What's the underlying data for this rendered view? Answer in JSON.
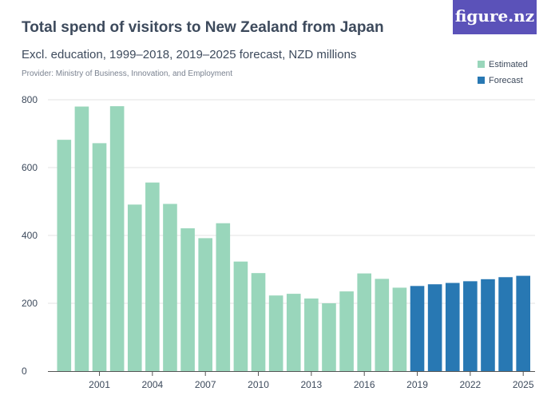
{
  "header": {
    "title": "Total spend of visitors to New Zealand from Japan",
    "subtitle": "Excl. education, 1999–2018, 2019–2025 forecast, NZD millions",
    "provider": "Provider: Ministry of Business, Innovation, and Employment",
    "logo": "figure.nz"
  },
  "chart_data": {
    "type": "bar",
    "title": "Total spend of visitors to New Zealand from Japan",
    "subtitle": "Excl. education, 1999–2018, 2019–2025 forecast, NZD millions",
    "categories": [
      1999,
      2000,
      2001,
      2002,
      2003,
      2004,
      2005,
      2006,
      2007,
      2008,
      2009,
      2010,
      2011,
      2012,
      2013,
      2014,
      2015,
      2016,
      2017,
      2018,
      2019,
      2020,
      2021,
      2022,
      2023,
      2024,
      2025
    ],
    "values": [
      682,
      780,
      672,
      781,
      491,
      556,
      493,
      421,
      392,
      436,
      323,
      289,
      223,
      228,
      214,
      200,
      235,
      288,
      272,
      246,
      251,
      256,
      260,
      265,
      271,
      277,
      281
    ],
    "series_by_category": [
      "Estimated",
      "Estimated",
      "Estimated",
      "Estimated",
      "Estimated",
      "Estimated",
      "Estimated",
      "Estimated",
      "Estimated",
      "Estimated",
      "Estimated",
      "Estimated",
      "Estimated",
      "Estimated",
      "Estimated",
      "Estimated",
      "Estimated",
      "Estimated",
      "Estimated",
      "Estimated",
      "Forecast",
      "Forecast",
      "Forecast",
      "Forecast",
      "Forecast",
      "Forecast",
      "Forecast"
    ],
    "legend": [
      {
        "name": "Estimated",
        "color": "#99d6bb"
      },
      {
        "name": "Forecast",
        "color": "#2878b3"
      }
    ],
    "legend_position": "top-right",
    "ylim": [
      0,
      800
    ],
    "yticks": [
      0,
      200,
      400,
      600,
      800
    ],
    "xticks": [
      "2001",
      "2004",
      "2007",
      "2010",
      "2013",
      "2016",
      "2019",
      "2022",
      "2025"
    ],
    "grid": true
  }
}
